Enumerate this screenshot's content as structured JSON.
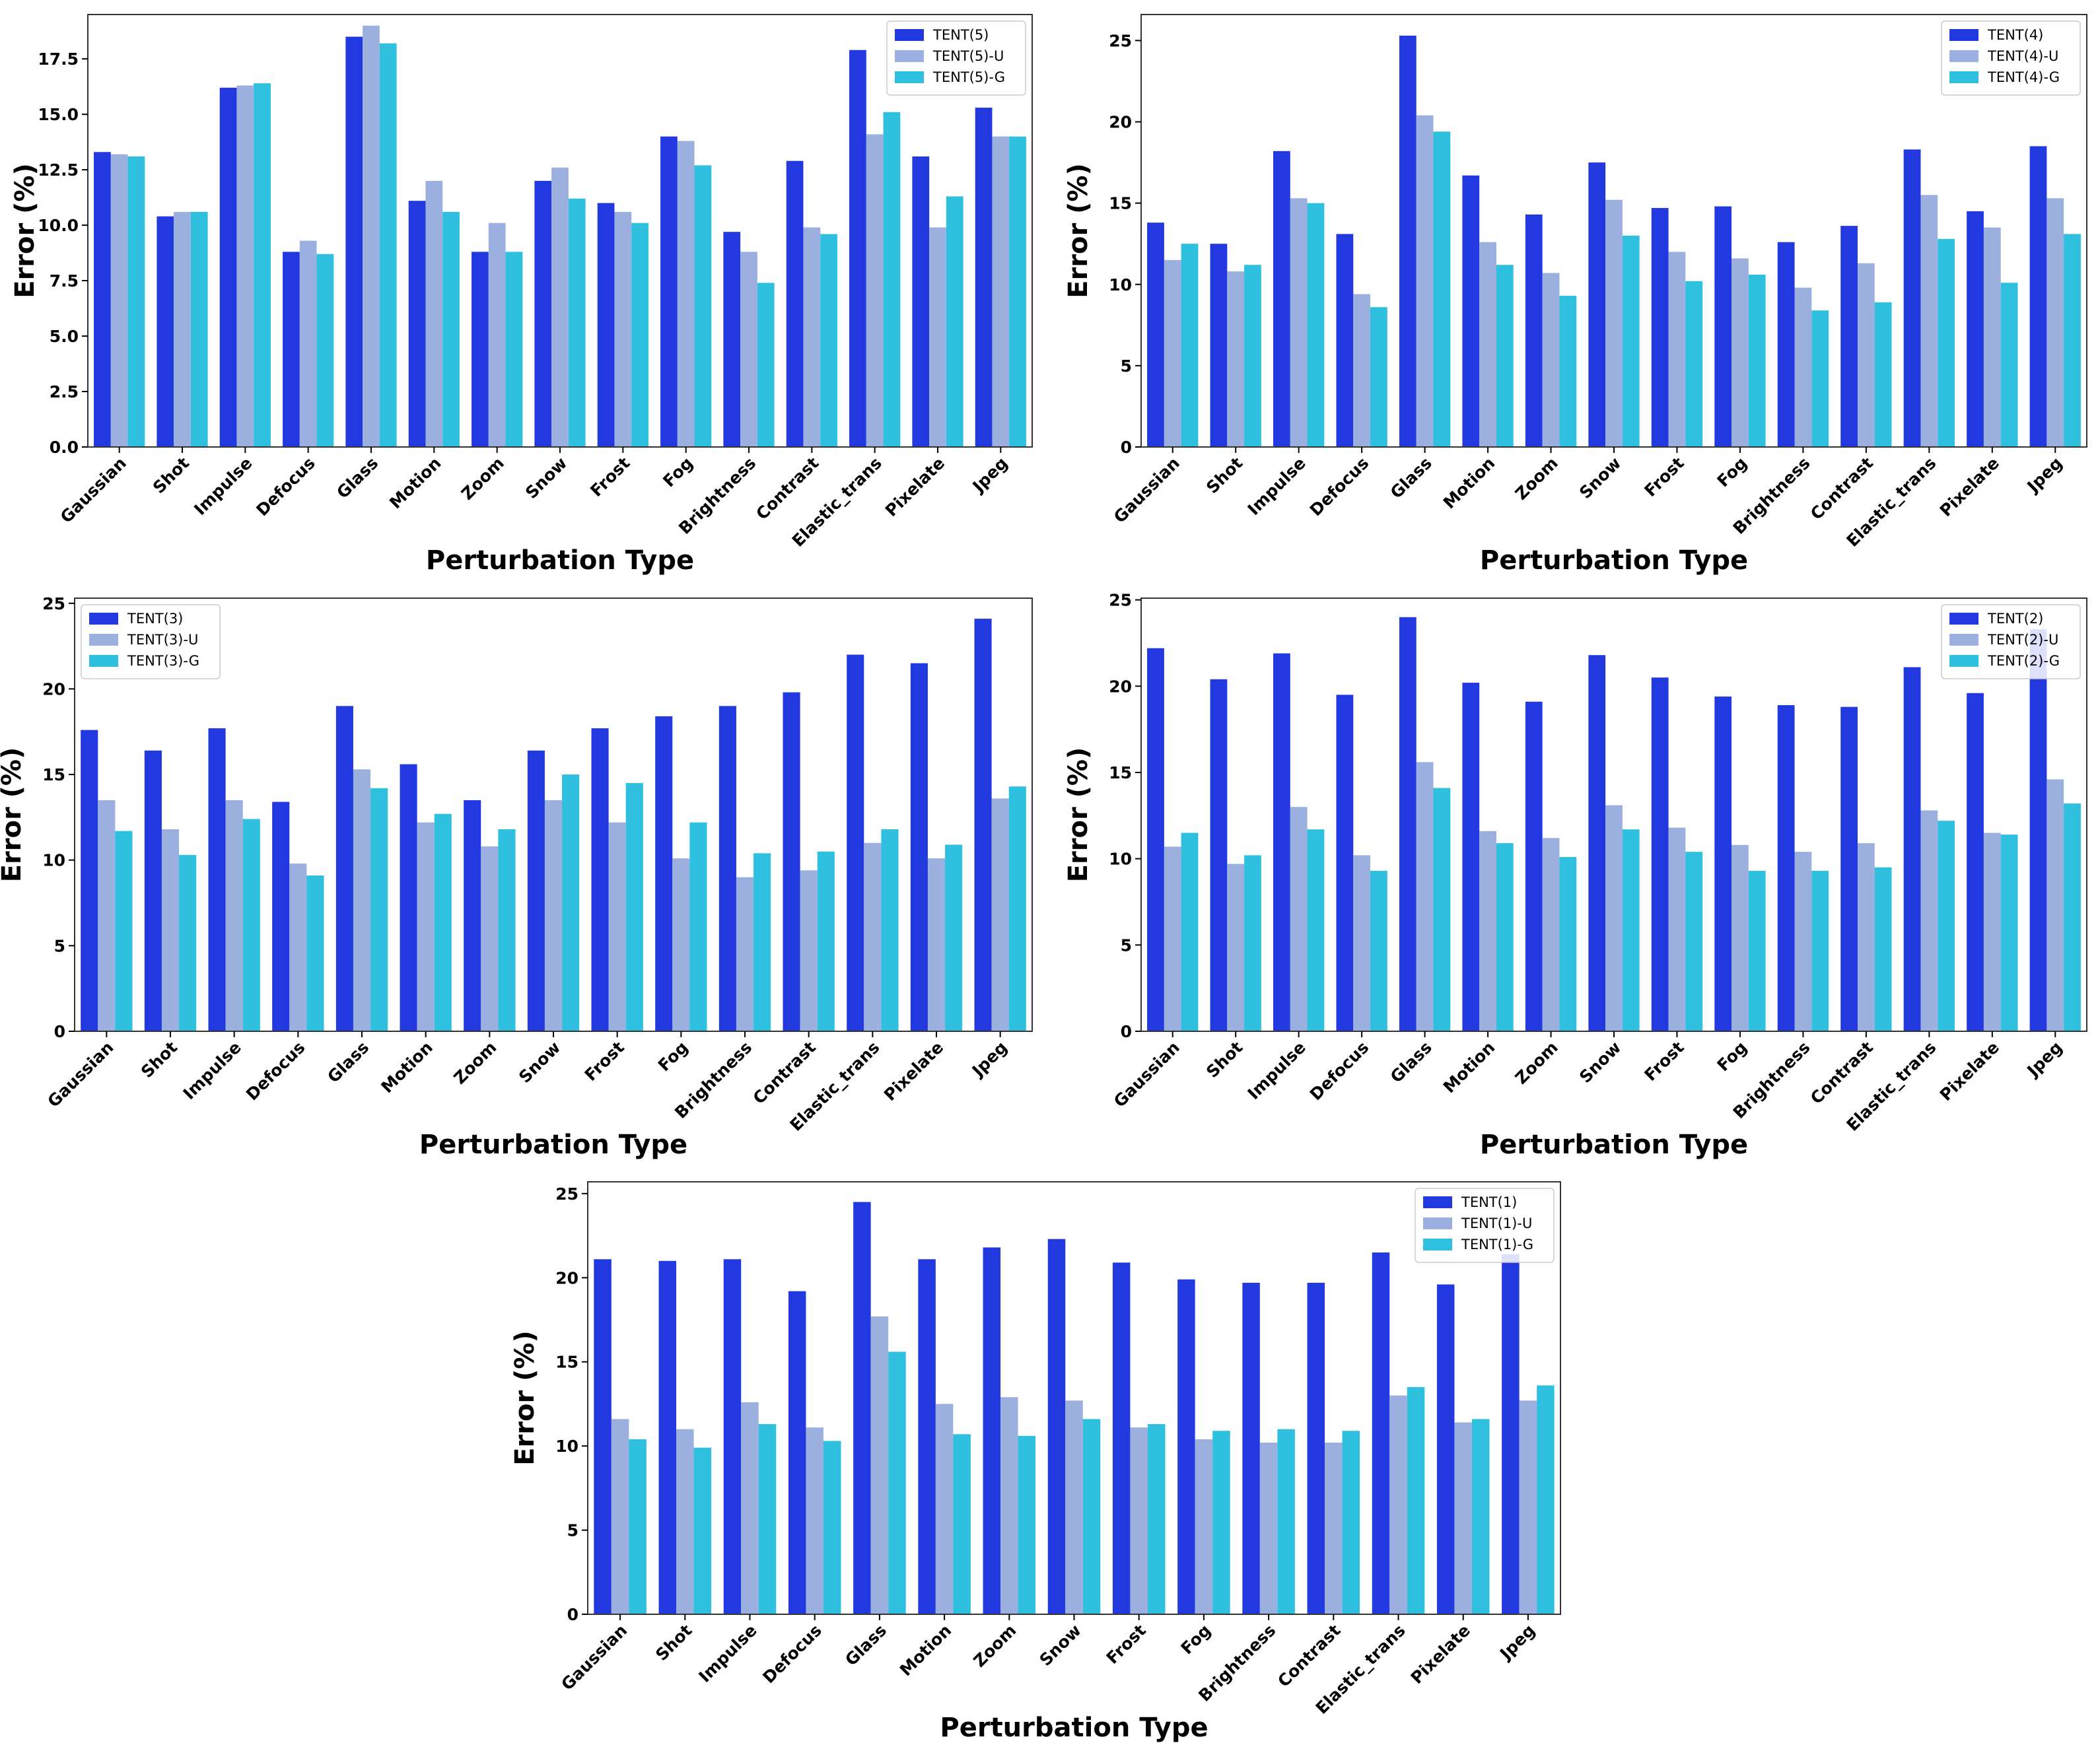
{
  "colors": {
    "base": "#2239e0",
    "u": "#9bb0de",
    "g": "#2fc0e0"
  },
  "chart_data": [
    {
      "type": "bar",
      "title": "",
      "xlabel": "Perturbation Type",
      "ylabel": "Error (%)",
      "ylim": [
        0,
        19.5
      ],
      "yticks": [
        "0.0",
        "2.5",
        "5.0",
        "7.5",
        "10.0",
        "12.5",
        "15.0",
        "17.5"
      ],
      "ytick_values": [
        0,
        2.5,
        5,
        7.5,
        10,
        12.5,
        15,
        17.5
      ],
      "legend_position": "top-right",
      "categories": [
        "Gaussian",
        "Shot",
        "Impulse",
        "Defocus",
        "Glass",
        "Motion",
        "Zoom",
        "Snow",
        "Frost",
        "Fog",
        "Brightness",
        "Contrast",
        "Elastic_trans",
        "Pixelate",
        "Jpeg"
      ],
      "series": [
        {
          "name": "TENT(5)",
          "values": [
            13.3,
            10.4,
            16.2,
            8.8,
            18.5,
            11.1,
            8.8,
            12.0,
            11.0,
            14.0,
            9.7,
            12.9,
            17.9,
            13.1,
            15.3
          ]
        },
        {
          "name": "TENT(5)-U",
          "values": [
            13.2,
            10.6,
            16.3,
            9.3,
            19.0,
            12.0,
            10.1,
            12.6,
            10.6,
            13.8,
            8.8,
            9.9,
            14.1,
            9.9,
            14.0
          ]
        },
        {
          "name": "TENT(5)-G",
          "values": [
            13.1,
            10.6,
            16.4,
            8.7,
            18.2,
            10.6,
            8.8,
            11.2,
            10.1,
            12.7,
            7.4,
            9.6,
            15.1,
            11.3,
            14.0
          ]
        }
      ]
    },
    {
      "type": "bar",
      "title": "",
      "xlabel": "Perturbation Type",
      "ylabel": "Error (%)",
      "ylim": [
        0,
        26.6
      ],
      "yticks": [
        "0",
        "5",
        "10",
        "15",
        "20",
        "25"
      ],
      "ytick_values": [
        0,
        5,
        10,
        15,
        20,
        25
      ],
      "legend_position": "top-right",
      "categories": [
        "Gaussian",
        "Shot",
        "Impulse",
        "Defocus",
        "Glass",
        "Motion",
        "Zoom",
        "Snow",
        "Frost",
        "Fog",
        "Brightness",
        "Contrast",
        "Elastic_trans",
        "Pixelate",
        "Jpeg"
      ],
      "series": [
        {
          "name": "TENT(4)",
          "values": [
            13.8,
            12.5,
            18.2,
            13.1,
            25.3,
            16.7,
            14.3,
            17.5,
            14.7,
            14.8,
            12.6,
            13.6,
            18.3,
            14.5,
            18.5
          ]
        },
        {
          "name": "TENT(4)-U",
          "values": [
            11.5,
            10.8,
            15.3,
            9.4,
            20.4,
            12.6,
            10.7,
            15.2,
            12.0,
            11.6,
            9.8,
            11.3,
            15.5,
            13.5,
            15.3
          ]
        },
        {
          "name": "TENT(4)-G",
          "values": [
            12.5,
            11.2,
            15.0,
            8.6,
            19.4,
            11.2,
            9.3,
            13.0,
            10.2,
            10.6,
            8.4,
            8.9,
            12.8,
            10.1,
            13.1
          ]
        }
      ]
    },
    {
      "type": "bar",
      "title": "",
      "xlabel": "Perturbation Type",
      "ylabel": "Error (%)",
      "ylim": [
        0,
        25.3
      ],
      "yticks": [
        "0",
        "5",
        "10",
        "15",
        "20",
        "25"
      ],
      "ytick_values": [
        0,
        5,
        10,
        15,
        20,
        25
      ],
      "legend_position": "top-left",
      "categories": [
        "Gaussian",
        "Shot",
        "Impulse",
        "Defocus",
        "Glass",
        "Motion",
        "Zoom",
        "Snow",
        "Frost",
        "Fog",
        "Brightness",
        "Contrast",
        "Elastic_trans",
        "Pixelate",
        "Jpeg"
      ],
      "series": [
        {
          "name": "TENT(3)",
          "values": [
            17.6,
            16.4,
            17.7,
            13.4,
            19.0,
            15.6,
            13.5,
            16.4,
            17.7,
            18.4,
            19.0,
            19.8,
            22.0,
            21.5,
            24.1
          ]
        },
        {
          "name": "TENT(3)-U",
          "values": [
            13.5,
            11.8,
            13.5,
            9.8,
            15.3,
            12.2,
            10.8,
            13.5,
            12.2,
            10.1,
            9.0,
            9.4,
            11.0,
            10.1,
            13.6
          ]
        },
        {
          "name": "TENT(3)-G",
          "values": [
            11.7,
            10.3,
            12.4,
            9.1,
            14.2,
            12.7,
            11.8,
            15.0,
            14.5,
            12.2,
            10.4,
            10.5,
            11.8,
            10.9,
            14.3
          ]
        }
      ]
    },
    {
      "type": "bar",
      "title": "",
      "xlabel": "Perturbation Type",
      "ylabel": "Error (%)",
      "ylim": [
        0,
        25.1
      ],
      "yticks": [
        "0",
        "5",
        "10",
        "15",
        "20",
        "25"
      ],
      "ytick_values": [
        0,
        5,
        10,
        15,
        20,
        25
      ],
      "legend_position": "top-right",
      "categories": [
        "Gaussian",
        "Shot",
        "Impulse",
        "Defocus",
        "Glass",
        "Motion",
        "Zoom",
        "Snow",
        "Frost",
        "Fog",
        "Brightness",
        "Contrast",
        "Elastic_trans",
        "Pixelate",
        "Jpeg"
      ],
      "series": [
        {
          "name": "TENT(2)",
          "values": [
            22.2,
            20.4,
            21.9,
            19.5,
            24.0,
            20.2,
            19.1,
            21.8,
            20.5,
            19.4,
            18.9,
            18.8,
            21.1,
            19.6,
            23.3
          ]
        },
        {
          "name": "TENT(2)-U",
          "values": [
            10.7,
            9.7,
            13.0,
            10.2,
            15.6,
            11.6,
            11.2,
            13.1,
            11.8,
            10.8,
            10.4,
            10.9,
            12.8,
            11.5,
            14.6
          ]
        },
        {
          "name": "TENT(2)-G",
          "values": [
            11.5,
            10.2,
            11.7,
            9.3,
            14.1,
            10.9,
            10.1,
            11.7,
            10.4,
            9.3,
            9.3,
            9.5,
            12.2,
            11.4,
            13.2
          ]
        }
      ]
    },
    {
      "type": "bar",
      "title": "",
      "xlabel": "Perturbation Type",
      "ylabel": "Error (%)",
      "ylim": [
        0,
        25.7
      ],
      "yticks": [
        "0",
        "5",
        "10",
        "15",
        "20",
        "25"
      ],
      "ytick_values": [
        0,
        5,
        10,
        15,
        20,
        25
      ],
      "legend_position": "top-right",
      "categories": [
        "Gaussian",
        "Shot",
        "Impulse",
        "Defocus",
        "Glass",
        "Motion",
        "Zoom",
        "Snow",
        "Frost",
        "Fog",
        "Brightness",
        "Contrast",
        "Elastic_trans",
        "Pixelate",
        "Jpeg"
      ],
      "series": [
        {
          "name": "TENT(1)",
          "values": [
            21.1,
            21.0,
            21.1,
            19.2,
            24.5,
            21.1,
            21.8,
            22.3,
            20.9,
            19.9,
            19.7,
            19.7,
            21.5,
            19.6,
            21.4
          ]
        },
        {
          "name": "TENT(1)-U",
          "values": [
            11.6,
            11.0,
            12.6,
            11.1,
            17.7,
            12.5,
            12.9,
            12.7,
            11.1,
            10.4,
            10.2,
            10.2,
            13.0,
            11.4,
            12.7
          ]
        },
        {
          "name": "TENT(1)-G",
          "values": [
            10.4,
            9.9,
            11.3,
            10.3,
            15.6,
            10.7,
            10.6,
            11.6,
            11.3,
            10.9,
            11.0,
            10.9,
            13.5,
            11.6,
            13.6
          ]
        }
      ]
    }
  ]
}
